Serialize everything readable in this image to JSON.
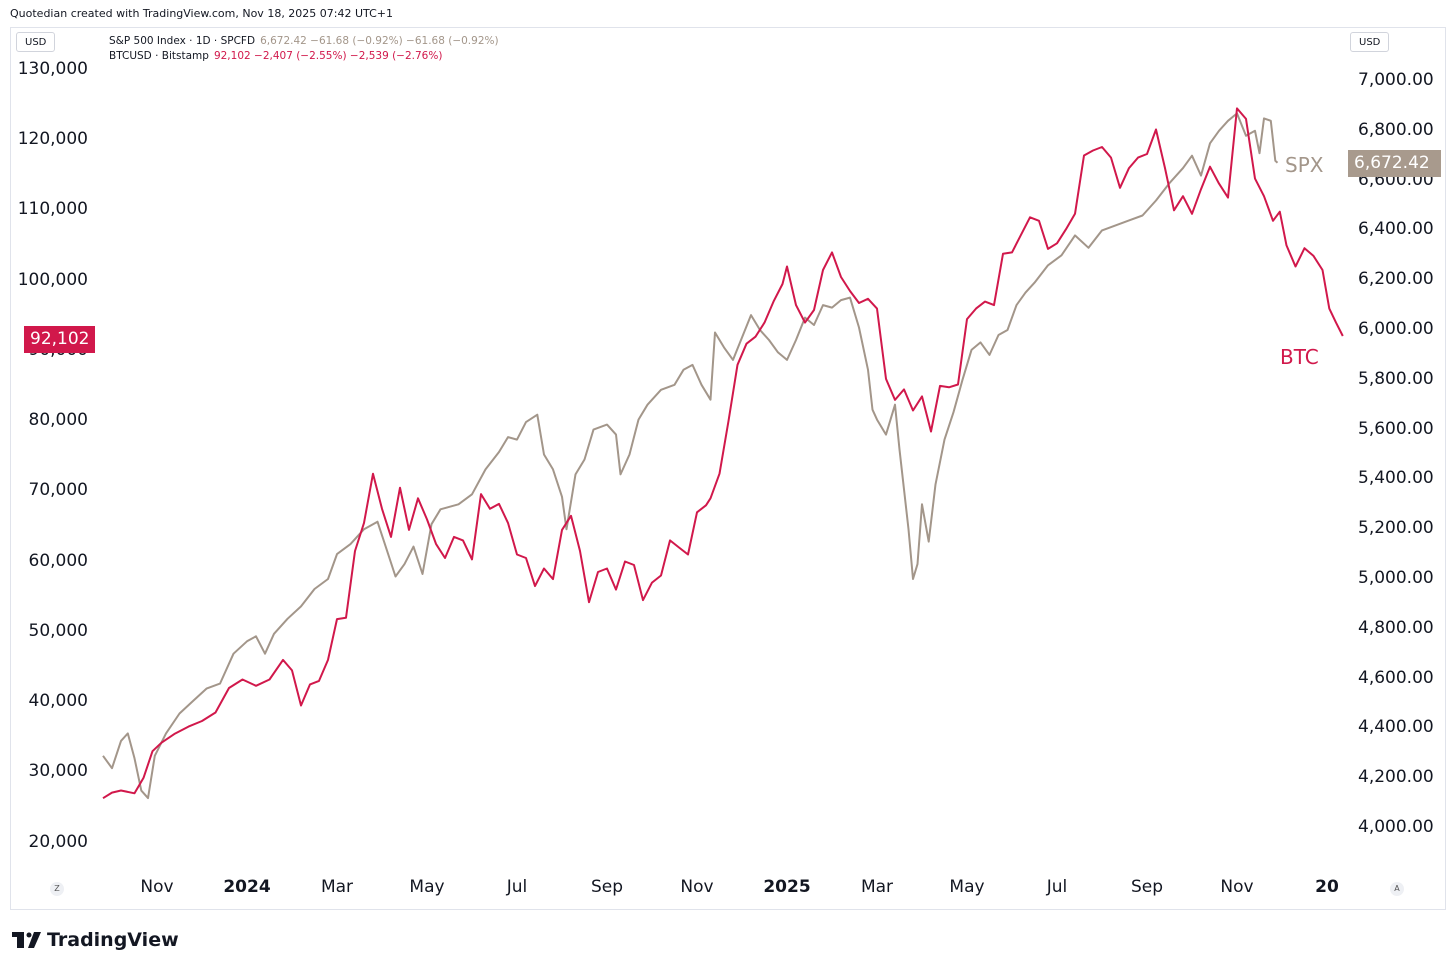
{
  "header": {
    "text": "Quotedian created with TradingView.com, Nov 18, 2025 07:42 UTC+1"
  },
  "left_currency": "USD",
  "right_currency": "USD",
  "legend": {
    "spx": {
      "name": "S&P 500 Index · 1D · SPCFD",
      "values": "6,672.42  −61.68 (−0.92%)  −61.68 (−0.92%)"
    },
    "btc": {
      "name": "BTCUSD · Bitstamp",
      "values": "92,102  −2,407 (−2.55%)  −2,539 (−2.76%)"
    }
  },
  "price_boxes": {
    "btc": "92,102",
    "spx": "6,672.42"
  },
  "series_labels": {
    "spx": "SPX",
    "btc": "BTC"
  },
  "corner": {
    "left": "Z",
    "right": "A"
  },
  "logo": {
    "text": "TradingView"
  },
  "colors": {
    "spx": "#a3968a",
    "btc": "#d1184b",
    "spx_box": "#a89a8d",
    "btc_box": "#d1184b"
  },
  "chart_data": {
    "type": "line",
    "x_ticks": [
      {
        "label": "Nov",
        "t": 0.0,
        "bold": false
      },
      {
        "label": "2024",
        "t": 2.0,
        "bold": true
      },
      {
        "label": "Mar",
        "t": 4.0,
        "bold": false
      },
      {
        "label": "May",
        "t": 6.0,
        "bold": false
      },
      {
        "label": "Jul",
        "t": 8.0,
        "bold": false
      },
      {
        "label": "Sep",
        "t": 10.0,
        "bold": false
      },
      {
        "label": "Nov",
        "t": 12.0,
        "bold": false
      },
      {
        "label": "2025",
        "t": 14.0,
        "bold": true
      },
      {
        "label": "Mar",
        "t": 16.0,
        "bold": false
      },
      {
        "label": "May",
        "t": 18.0,
        "bold": false
      },
      {
        "label": "Jul",
        "t": 20.0,
        "bold": false
      },
      {
        "label": "Sep",
        "t": 22.0,
        "bold": false
      },
      {
        "label": "Nov",
        "t": 24.0,
        "bold": false
      },
      {
        "label": "20",
        "t": 26.0,
        "bold": true
      }
    ],
    "left_axis": {
      "name": "BTCUSD",
      "ticks": [
        "130,000",
        "120,000",
        "110,000",
        "100,000",
        "90,000",
        "80,000",
        "70,000",
        "60,000",
        "50,000",
        "40,000",
        "30,000",
        "20,000"
      ],
      "tick_values": [
        130000,
        120000,
        110000,
        100000,
        90000,
        80000,
        70000,
        60000,
        50000,
        40000,
        30000,
        20000
      ]
    },
    "right_axis": {
      "name": "S&P 500",
      "ticks": [
        "7,000.00",
        "6,800.00",
        "6,600.00",
        "6,400.00",
        "6,200.00",
        "6,000.00",
        "5,800.00",
        "5,600.00",
        "5,400.00",
        "5,200.00",
        "5,000.00",
        "4,800.00",
        "4,600.00",
        "4,400.00",
        "4,200.00",
        "4,000.00"
      ],
      "tick_values": [
        7000,
        6800,
        6600,
        6400,
        6200,
        6000,
        5800,
        5600,
        5400,
        5200,
        5000,
        4800,
        4600,
        4400,
        4200,
        4000
      ]
    },
    "series": [
      {
        "name": "SPX",
        "axis": "right",
        "points": [
          [
            -1.2,
            4290
          ],
          [
            -1.0,
            4240
          ],
          [
            -0.8,
            4350
          ],
          [
            -0.65,
            4380
          ],
          [
            -0.5,
            4280
          ],
          [
            -0.35,
            4150
          ],
          [
            -0.2,
            4120
          ],
          [
            -0.05,
            4290
          ],
          [
            0.2,
            4380
          ],
          [
            0.5,
            4460
          ],
          [
            0.8,
            4510
          ],
          [
            1.1,
            4560
          ],
          [
            1.4,
            4580
          ],
          [
            1.7,
            4700
          ],
          [
            2.0,
            4750
          ],
          [
            2.2,
            4770
          ],
          [
            2.4,
            4700
          ],
          [
            2.6,
            4780
          ],
          [
            2.9,
            4840
          ],
          [
            3.2,
            4890
          ],
          [
            3.5,
            4960
          ],
          [
            3.8,
            5000
          ],
          [
            4.0,
            5100
          ],
          [
            4.3,
            5140
          ],
          [
            4.6,
            5200
          ],
          [
            4.9,
            5230
          ],
          [
            5.1,
            5120
          ],
          [
            5.3,
            5010
          ],
          [
            5.5,
            5060
          ],
          [
            5.7,
            5130
          ],
          [
            5.9,
            5020
          ],
          [
            6.1,
            5220
          ],
          [
            6.3,
            5280
          ],
          [
            6.5,
            5290
          ],
          [
            6.7,
            5300
          ],
          [
            7.0,
            5340
          ],
          [
            7.3,
            5440
          ],
          [
            7.6,
            5510
          ],
          [
            7.8,
            5570
          ],
          [
            8.0,
            5560
          ],
          [
            8.2,
            5630
          ],
          [
            8.45,
            5660
          ],
          [
            8.6,
            5500
          ],
          [
            8.8,
            5440
          ],
          [
            9.0,
            5330
          ],
          [
            9.1,
            5200
          ],
          [
            9.3,
            5420
          ],
          [
            9.5,
            5480
          ],
          [
            9.7,
            5600
          ],
          [
            10.0,
            5620
          ],
          [
            10.2,
            5580
          ],
          [
            10.3,
            5420
          ],
          [
            10.5,
            5500
          ],
          [
            10.7,
            5640
          ],
          [
            10.9,
            5700
          ],
          [
            11.2,
            5760
          ],
          [
            11.5,
            5780
          ],
          [
            11.7,
            5840
          ],
          [
            11.9,
            5860
          ],
          [
            12.1,
            5780
          ],
          [
            12.3,
            5720
          ],
          [
            12.4,
            5990
          ],
          [
            12.6,
            5930
          ],
          [
            12.8,
            5880
          ],
          [
            13.0,
            5970
          ],
          [
            13.2,
            6060
          ],
          [
            13.4,
            6000
          ],
          [
            13.6,
            5960
          ],
          [
            13.8,
            5910
          ],
          [
            14.0,
            5880
          ],
          [
            14.2,
            5960
          ],
          [
            14.4,
            6050
          ],
          [
            14.6,
            6020
          ],
          [
            14.8,
            6100
          ],
          [
            15.0,
            6090
          ],
          [
            15.2,
            6120
          ],
          [
            15.4,
            6130
          ],
          [
            15.6,
            6010
          ],
          [
            15.8,
            5840
          ],
          [
            15.9,
            5680
          ],
          [
            16.0,
            5640
          ],
          [
            16.2,
            5580
          ],
          [
            16.4,
            5700
          ],
          [
            16.5,
            5520
          ],
          [
            16.7,
            5200
          ],
          [
            16.8,
            5000
          ],
          [
            16.9,
            5060
          ],
          [
            17.0,
            5300
          ],
          [
            17.15,
            5150
          ],
          [
            17.3,
            5380
          ],
          [
            17.5,
            5560
          ],
          [
            17.7,
            5670
          ],
          [
            17.9,
            5800
          ],
          [
            18.1,
            5920
          ],
          [
            18.3,
            5950
          ],
          [
            18.5,
            5900
          ],
          [
            18.7,
            5980
          ],
          [
            18.9,
            6000
          ],
          [
            19.1,
            6100
          ],
          [
            19.3,
            6150
          ],
          [
            19.5,
            6190
          ],
          [
            19.8,
            6260
          ],
          [
            20.1,
            6300
          ],
          [
            20.4,
            6380
          ],
          [
            20.7,
            6330
          ],
          [
            21.0,
            6400
          ],
          [
            21.3,
            6420
          ],
          [
            21.6,
            6440
          ],
          [
            21.9,
            6460
          ],
          [
            22.2,
            6520
          ],
          [
            22.5,
            6590
          ],
          [
            22.8,
            6650
          ],
          [
            23.0,
            6700
          ],
          [
            23.2,
            6620
          ],
          [
            23.4,
            6750
          ],
          [
            23.6,
            6800
          ],
          [
            23.8,
            6840
          ],
          [
            24.0,
            6870
          ],
          [
            24.2,
            6780
          ],
          [
            24.4,
            6800
          ],
          [
            24.5,
            6710
          ],
          [
            24.6,
            6850
          ],
          [
            24.75,
            6840
          ],
          [
            24.85,
            6680
          ],
          [
            24.9,
            6672
          ]
        ]
      },
      {
        "name": "BTC",
        "axis": "left",
        "points": [
          [
            -1.2,
            26300
          ],
          [
            -1.0,
            27100
          ],
          [
            -0.8,
            27400
          ],
          [
            -0.5,
            27000
          ],
          [
            -0.3,
            29200
          ],
          [
            -0.1,
            33000
          ],
          [
            0.1,
            34200
          ],
          [
            0.4,
            35500
          ],
          [
            0.7,
            36500
          ],
          [
            1.0,
            37300
          ],
          [
            1.3,
            38500
          ],
          [
            1.6,
            42000
          ],
          [
            1.9,
            43200
          ],
          [
            2.2,
            42300
          ],
          [
            2.5,
            43200
          ],
          [
            2.8,
            46000
          ],
          [
            3.0,
            44500
          ],
          [
            3.2,
            39500
          ],
          [
            3.4,
            42500
          ],
          [
            3.6,
            43000
          ],
          [
            3.8,
            46000
          ],
          [
            4.0,
            51800
          ],
          [
            4.2,
            52000
          ],
          [
            4.4,
            61500
          ],
          [
            4.6,
            65500
          ],
          [
            4.8,
            72500
          ],
          [
            5.0,
            67500
          ],
          [
            5.2,
            63500
          ],
          [
            5.4,
            70500
          ],
          [
            5.6,
            64500
          ],
          [
            5.8,
            69000
          ],
          [
            6.0,
            66000
          ],
          [
            6.2,
            62500
          ],
          [
            6.4,
            60500
          ],
          [
            6.6,
            63500
          ],
          [
            6.8,
            63000
          ],
          [
            7.0,
            60300
          ],
          [
            7.2,
            69600
          ],
          [
            7.4,
            67500
          ],
          [
            7.6,
            68200
          ],
          [
            7.8,
            65500
          ],
          [
            8.0,
            61000
          ],
          [
            8.2,
            60500
          ],
          [
            8.4,
            56500
          ],
          [
            8.6,
            59000
          ],
          [
            8.8,
            57500
          ],
          [
            9.0,
            64500
          ],
          [
            9.2,
            66500
          ],
          [
            9.4,
            61500
          ],
          [
            9.6,
            54200
          ],
          [
            9.8,
            58500
          ],
          [
            10.0,
            59000
          ],
          [
            10.2,
            56000
          ],
          [
            10.4,
            60000
          ],
          [
            10.6,
            59500
          ],
          [
            10.8,
            54500
          ],
          [
            11.0,
            57000
          ],
          [
            11.2,
            58000
          ],
          [
            11.4,
            63000
          ],
          [
            11.6,
            62000
          ],
          [
            11.8,
            61000
          ],
          [
            12.0,
            67000
          ],
          [
            12.2,
            68000
          ],
          [
            12.3,
            69000
          ],
          [
            12.5,
            72500
          ],
          [
            12.7,
            80000
          ],
          [
            12.9,
            88000
          ],
          [
            13.1,
            91000
          ],
          [
            13.3,
            92000
          ],
          [
            13.5,
            94000
          ],
          [
            13.7,
            97000
          ],
          [
            13.9,
            99500
          ],
          [
            14.0,
            102000
          ],
          [
            14.2,
            96500
          ],
          [
            14.4,
            94000
          ],
          [
            14.6,
            95800
          ],
          [
            14.8,
            101500
          ],
          [
            15.0,
            104000
          ],
          [
            15.2,
            100500
          ],
          [
            15.4,
            98500
          ],
          [
            15.6,
            96800
          ],
          [
            15.8,
            97400
          ],
          [
            16.0,
            96000
          ],
          [
            16.2,
            86000
          ],
          [
            16.4,
            83000
          ],
          [
            16.6,
            84500
          ],
          [
            16.8,
            81500
          ],
          [
            17.0,
            83500
          ],
          [
            17.2,
            78500
          ],
          [
            17.4,
            85000
          ],
          [
            17.6,
            84800
          ],
          [
            17.8,
            85200
          ],
          [
            18.0,
            94500
          ],
          [
            18.2,
            96000
          ],
          [
            18.4,
            97000
          ],
          [
            18.6,
            96500
          ],
          [
            18.8,
            103800
          ],
          [
            19.0,
            104000
          ],
          [
            19.2,
            106500
          ],
          [
            19.4,
            109000
          ],
          [
            19.6,
            108500
          ],
          [
            19.8,
            104500
          ],
          [
            20.0,
            105300
          ],
          [
            20.2,
            107300
          ],
          [
            20.4,
            109500
          ],
          [
            20.6,
            117800
          ],
          [
            20.8,
            118500
          ],
          [
            21.0,
            119000
          ],
          [
            21.2,
            117500
          ],
          [
            21.4,
            113200
          ],
          [
            21.6,
            116000
          ],
          [
            21.8,
            117500
          ],
          [
            22.0,
            118000
          ],
          [
            22.2,
            121500
          ],
          [
            22.4,
            116000
          ],
          [
            22.6,
            110000
          ],
          [
            22.8,
            112000
          ],
          [
            23.0,
            109500
          ],
          [
            23.2,
            113000
          ],
          [
            23.4,
            116200
          ],
          [
            23.6,
            113800
          ],
          [
            23.8,
            111800
          ],
          [
            24.0,
            124500
          ],
          [
            24.2,
            123000
          ],
          [
            24.4,
            114500
          ],
          [
            24.6,
            112000
          ],
          [
            24.8,
            108500
          ],
          [
            24.95,
            109800
          ],
          [
            25.1,
            105000
          ],
          [
            25.3,
            102000
          ],
          [
            25.5,
            104600
          ],
          [
            25.7,
            103500
          ],
          [
            25.9,
            101500
          ],
          [
            26.05,
            96000
          ],
          [
            26.2,
            94000
          ],
          [
            26.35,
            92102
          ]
        ]
      }
    ]
  }
}
